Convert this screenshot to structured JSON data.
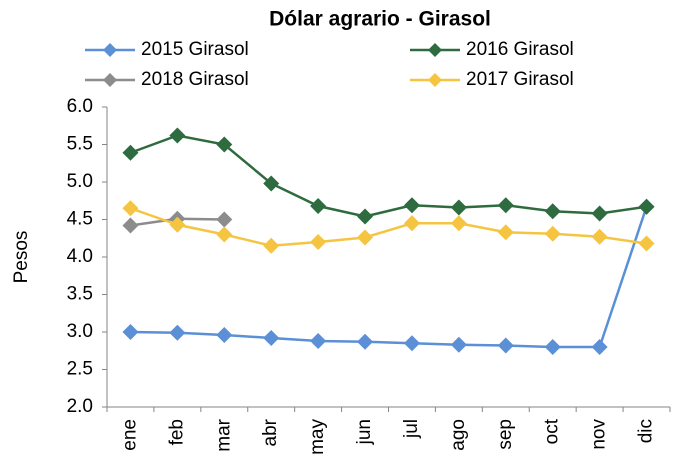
{
  "chart_data": {
    "type": "line",
    "title": "Dólar agrario - Girasol",
    "y_label": "Pesos",
    "categories": [
      "ene",
      "feb",
      "mar",
      "abr",
      "may",
      "jun",
      "jul",
      "ago",
      "sep",
      "oct",
      "nov",
      "dic"
    ],
    "series": [
      {
        "name": "2015 Girasol",
        "color": "#5b8fd6",
        "values": [
          3.0,
          2.99,
          2.96,
          2.92,
          2.88,
          2.87,
          2.85,
          2.83,
          2.82,
          2.8,
          2.8,
          4.67
        ]
      },
      {
        "name": "2016 Girasol",
        "color": "#2e6b3e",
        "values": [
          5.39,
          5.62,
          5.5,
          4.98,
          4.68,
          4.54,
          4.69,
          4.66,
          4.69,
          4.61,
          4.58,
          4.67
        ]
      },
      {
        "name": "2018 Girasol",
        "color": "#8c8c8c",
        "values": [
          4.42,
          4.51,
          4.5,
          null,
          null,
          null,
          null,
          null,
          null,
          null,
          null,
          null
        ]
      },
      {
        "name": "2017 Girasol",
        "color": "#f5c542",
        "values": [
          4.65,
          4.43,
          4.3,
          4.15,
          4.2,
          4.26,
          4.45,
          4.45,
          4.33,
          4.31,
          4.27,
          4.18
        ]
      }
    ],
    "ylim": [
      2,
      6
    ],
    "yticks": [
      {
        "value": 2,
        "label": "2.0"
      },
      2.5,
      {
        "value": 3,
        "label": "3.0"
      },
      3.5,
      {
        "value": 4,
        "label": "4.0"
      },
      4.5,
      {
        "value": 5,
        "label": "5.0"
      },
      5.5,
      {
        "value": 6,
        "label": "6.0"
      }
    ],
    "grid": false
  }
}
